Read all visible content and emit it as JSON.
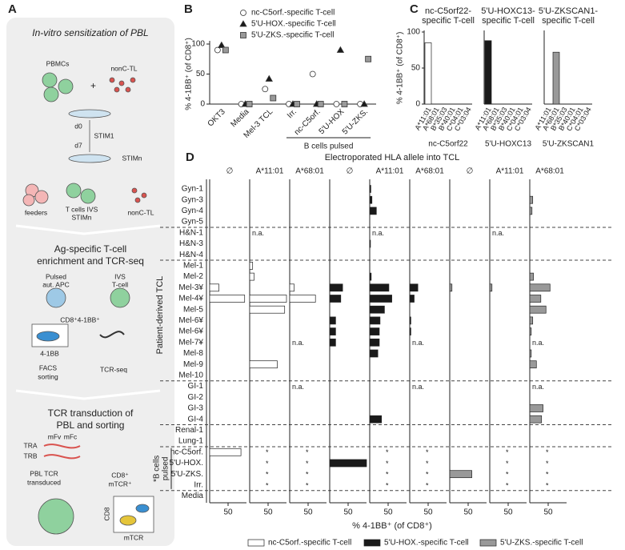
{
  "panel_labels": [
    "A",
    "B",
    "C",
    "D"
  ],
  "panel_a": {
    "sections": [
      {
        "title": [
          "In-vitro sensitization of PBL"
        ],
        "labels": [
          "PBMCs",
          "nonC-TL",
          "d0",
          "d7",
          "STIM1",
          "STIMn",
          "feeders",
          "T cells IVS",
          "STIMn",
          "nonC-TL"
        ]
      },
      {
        "title": [
          "Ag-specific T-cell",
          "enrichment and TCR-seq"
        ],
        "labels": [
          "Pulsed",
          "aut. APC",
          "IVS",
          "T-cell",
          "CD8⁺4-1BB⁺",
          "4-1BB",
          "FACS",
          "sorting",
          "TCR-seq"
        ]
      },
      {
        "title": [
          "TCR transduction of",
          "PBL and sorting"
        ],
        "labels": [
          "TRA",
          "TRB",
          "mFv",
          "mFc",
          "PBL TCR",
          "transduced",
          "CD8⁺",
          "mTCR⁺",
          "CD8",
          "mTCR"
        ]
      }
    ]
  },
  "chart_data": [
    {
      "type": "scatter",
      "ylabel": "% 4-1BB⁺ (of CD8⁺)",
      "categories": [
        "OKT3",
        "Media",
        "Mel-3 TCL",
        "Irr.",
        "nc-C5orf.",
        "5'U-HOX",
        "5'U-ZKS."
      ],
      "series": [
        {
          "name": "nc-C5orf.-specific T-cell",
          "color": "#ffffff",
          "marker": "circle",
          "values": [
            90,
            0,
            25,
            0,
            50,
            0,
            0
          ]
        },
        {
          "name": "5'U-HOX.-specific T-cell",
          "color": "#1a1a1a",
          "marker": "triangle",
          "values": [
            98,
            0,
            42,
            0,
            0,
            90,
            0
          ]
        },
        {
          "name": "5'U-ZKS.-specific T-cell",
          "color": "#999999",
          "marker": "square",
          "values": [
            90,
            0,
            10,
            0,
            0,
            0,
            75
          ]
        }
      ],
      "annotation": "B cells pulsed",
      "ylim": [
        0,
        100
      ],
      "yticks": [
        0,
        50,
        100
      ]
    },
    {
      "type": "bar",
      "title": [
        "nc-C5orf22-",
        "specific T-cell"
      ],
      "xlabel": "nc-C5orf22",
      "ylabel": "% 4-1BB⁺ (of CD8⁺)",
      "categories": [
        "A*11:01",
        "A*68:01",
        "B*35:03",
        "B*40:01",
        "C*04:01",
        "C*03:04"
      ],
      "values": [
        85,
        0,
        0,
        0,
        0,
        0
      ],
      "color": "#ffffff",
      "ylim": [
        0,
        100
      ],
      "yticks": [
        0,
        50,
        100
      ]
    },
    {
      "type": "bar",
      "title": [
        "5'U-HOXC13-",
        "specific T-cell"
      ],
      "xlabel": "5'U-HOXC13",
      "categories": [
        "A*11:01",
        "A*68:01",
        "B*35:03",
        "B*40:01",
        "C*04:01",
        "C*03:04"
      ],
      "values": [
        88,
        0,
        0,
        0,
        0,
        0
      ],
      "color": "#1a1a1a",
      "ylim": [
        0,
        100
      ]
    },
    {
      "type": "bar",
      "title": [
        "5'U-ZKSCAN1-",
        "specific T-cell"
      ],
      "xlabel": "5'U-ZKSCAN1",
      "categories": [
        "A*11:01",
        "A*68:01",
        "B*35:03",
        "B*40:01",
        "C*04:01",
        "C*03:04"
      ],
      "values": [
        0,
        72,
        0,
        0,
        0,
        0
      ],
      "color": "#999999",
      "ylim": [
        0,
        100
      ]
    },
    {
      "type": "panel-bar",
      "title": "Electroporated HLA allele into TCL",
      "ylabel": "Patient-derived TCL",
      "pulsed_label": [
        "*B cells",
        "pulsed"
      ],
      "xlabel": "% 4-1BB⁺ (of CD8⁺)",
      "xlim": [
        0,
        100
      ],
      "xticks": [
        50
      ],
      "rows": [
        "Gyn-1",
        "Gyn-3",
        "Gyn-4",
        "Gyn-5",
        "H&N-1",
        "H&N-3",
        "H&N-4",
        "Mel-1",
        "Mel-2",
        "Mel-3¥",
        "Mel-4¥",
        "Mel-5",
        "Mel-6¥",
        "Mel-6¥",
        "Mel-7¥",
        "Mel-8",
        "Mel-9",
        "Mel-10",
        "GI-1",
        "GI-2",
        "GI-3",
        "GI-4",
        "Renal-1",
        "Lung-1",
        "nc-C5orf.",
        "5'U-HOX.",
        "5'U-ZKS.",
        "Irr.",
        "Media"
      ],
      "series": [
        {
          "name": "nc-C5orf.-specific T-cell",
          "color": "#ffffff"
        },
        {
          "name": "5'U-HOX.-specific T-cell",
          "color": "#1a1a1a"
        },
        {
          "name": "5'U-ZKS.-specific T-cell",
          "color": "#999999"
        }
      ],
      "panels": [
        {
          "header": "∅",
          "series": 0,
          "values": [
            0,
            0,
            0,
            0,
            0,
            0,
            0,
            0,
            0,
            25,
            95,
            0,
            0,
            0,
            0,
            0,
            0,
            0,
            0,
            0,
            0,
            0,
            0,
            0,
            85,
            0,
            0,
            0,
            0
          ]
        },
        {
          "header": "A*11:01",
          "series": 0,
          "values": [
            0,
            0,
            0,
            0,
            null,
            0,
            0,
            8,
            12,
            0,
            100,
            95,
            0,
            0,
            0,
            0,
            75,
            0,
            0,
            0,
            0,
            0,
            0,
            0,
            null,
            null,
            null,
            null,
            0
          ],
          "value_labels": [
            null,
            null,
            null,
            null,
            "n.a.",
            null,
            null,
            null,
            null,
            null,
            null,
            null,
            null,
            null,
            null,
            null,
            null,
            null,
            null,
            null,
            null,
            null,
            null,
            null,
            "*",
            "*",
            "*",
            "*",
            null
          ]
        },
        {
          "header": "A*68:01",
          "series": 0,
          "values": [
            0,
            0,
            0,
            0,
            0,
            0,
            0,
            0,
            0,
            12,
            70,
            0,
            0,
            0,
            null,
            0,
            0,
            0,
            null,
            0,
            0,
            0,
            0,
            0,
            null,
            null,
            null,
            null,
            0
          ],
          "value_labels": [
            null,
            null,
            null,
            null,
            null,
            null,
            null,
            null,
            null,
            null,
            null,
            null,
            null,
            null,
            "n.a.",
            null,
            null,
            null,
            "n.a.",
            null,
            null,
            null,
            null,
            null,
            "*",
            "*",
            "*",
            "*",
            null
          ]
        },
        {
          "header": "∅",
          "series": 1,
          "values": [
            0,
            0,
            0,
            0,
            0,
            0,
            0,
            0,
            0,
            35,
            30,
            0,
            16,
            16,
            16,
            0,
            0,
            0,
            0,
            0,
            0,
            0,
            0,
            0,
            0,
            100,
            0,
            0,
            0
          ]
        },
        {
          "header": "A*11:01",
          "series": 1,
          "values": [
            3,
            6,
            18,
            0,
            null,
            2,
            0,
            0,
            4,
            52,
            60,
            40,
            28,
            26,
            26,
            22,
            0,
            0,
            0,
            0,
            0,
            32,
            0,
            0,
            null,
            null,
            null,
            null,
            0
          ],
          "value_labels": [
            null,
            null,
            null,
            null,
            "n.a.",
            null,
            null,
            null,
            null,
            null,
            null,
            null,
            null,
            null,
            null,
            null,
            null,
            null,
            null,
            null,
            null,
            null,
            null,
            null,
            "*",
            "*",
            "*",
            "*",
            null
          ]
        },
        {
          "header": "A*68:01",
          "series": 1,
          "values": [
            0,
            0,
            0,
            0,
            0,
            0,
            0,
            0,
            0,
            22,
            12,
            0,
            3,
            3,
            null,
            0,
            0,
            0,
            null,
            0,
            0,
            0,
            0,
            0,
            null,
            null,
            null,
            null,
            0
          ],
          "value_labels": [
            null,
            null,
            null,
            null,
            null,
            null,
            null,
            null,
            null,
            null,
            null,
            null,
            null,
            null,
            "n.a.",
            null,
            null,
            null,
            "n.a.",
            null,
            null,
            null,
            null,
            null,
            "*",
            "*",
            "*",
            "*",
            null
          ]
        },
        {
          "header": "∅",
          "series": 2,
          "values": [
            0,
            0,
            0,
            0,
            0,
            0,
            0,
            0,
            0,
            6,
            0,
            0,
            0,
            0,
            0,
            0,
            0,
            0,
            0,
            0,
            0,
            0,
            0,
            0,
            0,
            0,
            60,
            0,
            0
          ]
        },
        {
          "header": "A*11:01",
          "series": 2,
          "values": [
            0,
            0,
            0,
            0,
            null,
            0,
            0,
            0,
            0,
            6,
            0,
            0,
            0,
            0,
            0,
            0,
            0,
            0,
            0,
            0,
            0,
            0,
            0,
            0,
            null,
            null,
            null,
            null,
            0
          ],
          "value_labels": [
            null,
            null,
            null,
            null,
            "n.a.",
            null,
            null,
            null,
            null,
            null,
            null,
            null,
            null,
            null,
            null,
            null,
            null,
            null,
            null,
            null,
            null,
            null,
            null,
            null,
            "*",
            "*",
            "*",
            "*",
            null
          ]
        },
        {
          "header": "A*68:01",
          "series": 2,
          "values": [
            0,
            8,
            6,
            0,
            0,
            0,
            0,
            0,
            10,
            55,
            30,
            44,
            8,
            4,
            null,
            4,
            18,
            0,
            null,
            0,
            36,
            32,
            0,
            0,
            null,
            null,
            null,
            null,
            0
          ],
          "value_labels": [
            null,
            null,
            null,
            null,
            null,
            null,
            null,
            null,
            null,
            null,
            null,
            null,
            null,
            null,
            "n.a.",
            null,
            null,
            null,
            "n.a.",
            null,
            null,
            null,
            null,
            null,
            "*",
            "*",
            "*",
            "*",
            null
          ]
        }
      ]
    }
  ]
}
